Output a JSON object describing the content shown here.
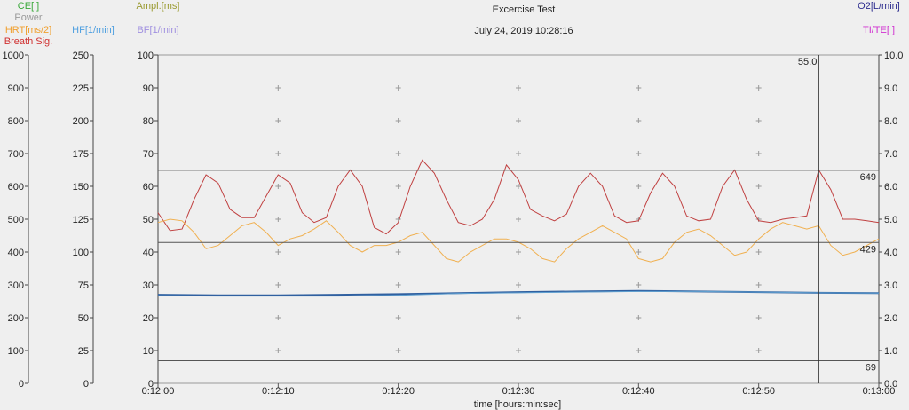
{
  "chart_data": {
    "type": "line",
    "title": "Excercise Test",
    "subtitle": "July 24, 2019 10:28:16",
    "xlabel": "time [hours:min:sec]",
    "grid": true,
    "legend": [
      {
        "label": "CE[ ]",
        "color": "#3aa83a"
      },
      {
        "label": "Power",
        "color": "#9a9a9a"
      },
      {
        "label": "HRT[ms/2]",
        "color": "#f0a030"
      },
      {
        "label": "Breath Sig.",
        "color": "#d03030"
      },
      {
        "label": "HF[1/min]",
        "color": "#50a0e0"
      },
      {
        "label": "Ampl.[ms]",
        "color": "#9a9a30"
      },
      {
        "label": "BF[1/min]",
        "color": "#a090e0"
      },
      {
        "label": "O2[L/min]",
        "color": "#303090"
      },
      {
        "label": "TI/TE[ ]",
        "color": "#d030d0"
      }
    ],
    "x_ticks": [
      "0:12:00",
      "0:12:10",
      "0:12:20",
      "0:12:30",
      "0:12:40",
      "0:12:50",
      "0:13:00"
    ],
    "axes": {
      "left1": {
        "ylim": [
          0,
          1000
        ],
        "ticks": [
          "0",
          "100",
          "200",
          "300",
          "400",
          "500",
          "600",
          "700",
          "800",
          "900",
          "1000"
        ]
      },
      "left2": {
        "ylim": [
          0,
          250
        ],
        "ticks": [
          "0",
          "25",
          "50",
          "75",
          "100",
          "125",
          "150",
          "175",
          "200",
          "225",
          "250"
        ]
      },
      "left3": {
        "ylim": [
          0,
          100
        ],
        "ticks": [
          "0",
          "10",
          "20",
          "30",
          "40",
          "50",
          "60",
          "70",
          "80",
          "90",
          "100"
        ]
      },
      "right": {
        "ylim": [
          0,
          10
        ],
        "ticks": [
          "0.0",
          "1.0",
          "2.0",
          "3.0",
          "4.0",
          "5.0",
          "6.0",
          "7.0",
          "8.0",
          "9.0",
          "10.0"
        ]
      }
    },
    "cursor": {
      "label": "55.0",
      "x_seconds": 55
    },
    "reference_lines": [
      {
        "value": 649,
        "label": "649"
      },
      {
        "value": 429,
        "label": "429"
      },
      {
        "value": 69,
        "label": "69"
      }
    ],
    "series": [
      {
        "name": "Breath Sig.",
        "color": "#c04040",
        "axis": "left1",
        "x": [
          0,
          1,
          2,
          3,
          4,
          5,
          6,
          7,
          8,
          9,
          10,
          11,
          12,
          13,
          14,
          15,
          16,
          17,
          18,
          19,
          20,
          21,
          22,
          23,
          24,
          25,
          26,
          27,
          28,
          29,
          30,
          31,
          32,
          33,
          34,
          35,
          36,
          37,
          38,
          39,
          40,
          41,
          42,
          43,
          44,
          45,
          46,
          47,
          48,
          49,
          50,
          51,
          52,
          53,
          54,
          55,
          56,
          57,
          58,
          59,
          60
        ],
        "values": [
          520,
          465,
          470,
          560,
          635,
          610,
          530,
          505,
          505,
          570,
          635,
          610,
          520,
          490,
          505,
          600,
          650,
          600,
          475,
          455,
          490,
          600,
          680,
          640,
          560,
          490,
          480,
          500,
          560,
          665,
          620,
          530,
          510,
          495,
          515,
          600,
          640,
          600,
          510,
          490,
          495,
          580,
          640,
          600,
          510,
          495,
          500,
          600,
          650,
          560,
          495,
          490,
          500,
          505,
          510,
          650,
          590,
          500,
          500,
          495,
          490
        ]
      },
      {
        "name": "HRT[ms/2]",
        "color": "#f0b050",
        "axis": "left1",
        "x": [
          0,
          1,
          2,
          3,
          4,
          5,
          6,
          7,
          8,
          9,
          10,
          11,
          12,
          13,
          14,
          15,
          16,
          17,
          18,
          19,
          20,
          21,
          22,
          23,
          24,
          25,
          26,
          27,
          28,
          29,
          30,
          31,
          32,
          33,
          34,
          35,
          36,
          37,
          38,
          39,
          40,
          41,
          42,
          43,
          44,
          45,
          46,
          47,
          48,
          49,
          50,
          51,
          52,
          53,
          54,
          55,
          56,
          57,
          58,
          59,
          60
        ],
        "values": [
          490,
          500,
          495,
          460,
          410,
          420,
          450,
          480,
          490,
          460,
          420,
          440,
          450,
          470,
          495,
          460,
          420,
          400,
          420,
          420,
          430,
          450,
          460,
          420,
          380,
          370,
          400,
          420,
          440,
          440,
          430,
          410,
          380,
          370,
          410,
          440,
          460,
          480,
          460,
          440,
          380,
          370,
          380,
          430,
          460,
          470,
          450,
          420,
          390,
          400,
          440,
          470,
          490,
          480,
          470,
          480,
          420,
          390,
          400,
          420,
          440
        ]
      },
      {
        "name": "O2[L/min]",
        "color": "#3060a0",
        "axis": "right",
        "x": [
          0,
          5,
          10,
          15,
          20,
          25,
          30,
          35,
          40,
          45,
          50,
          55,
          60
        ],
        "values": [
          2.7,
          2.68,
          2.68,
          2.7,
          2.72,
          2.75,
          2.78,
          2.8,
          2.82,
          2.8,
          2.78,
          2.76,
          2.75
        ]
      },
      {
        "name": "HF[1/min]",
        "color": "#60a0d0",
        "axis": "right",
        "x": [
          0,
          5,
          10,
          15,
          20,
          25,
          30,
          35,
          40,
          45,
          50,
          55,
          60
        ],
        "values": [
          2.67,
          2.66,
          2.66,
          2.66,
          2.68,
          2.74,
          2.76,
          2.78,
          2.8,
          2.8,
          2.78,
          2.76,
          2.75
        ]
      }
    ]
  }
}
